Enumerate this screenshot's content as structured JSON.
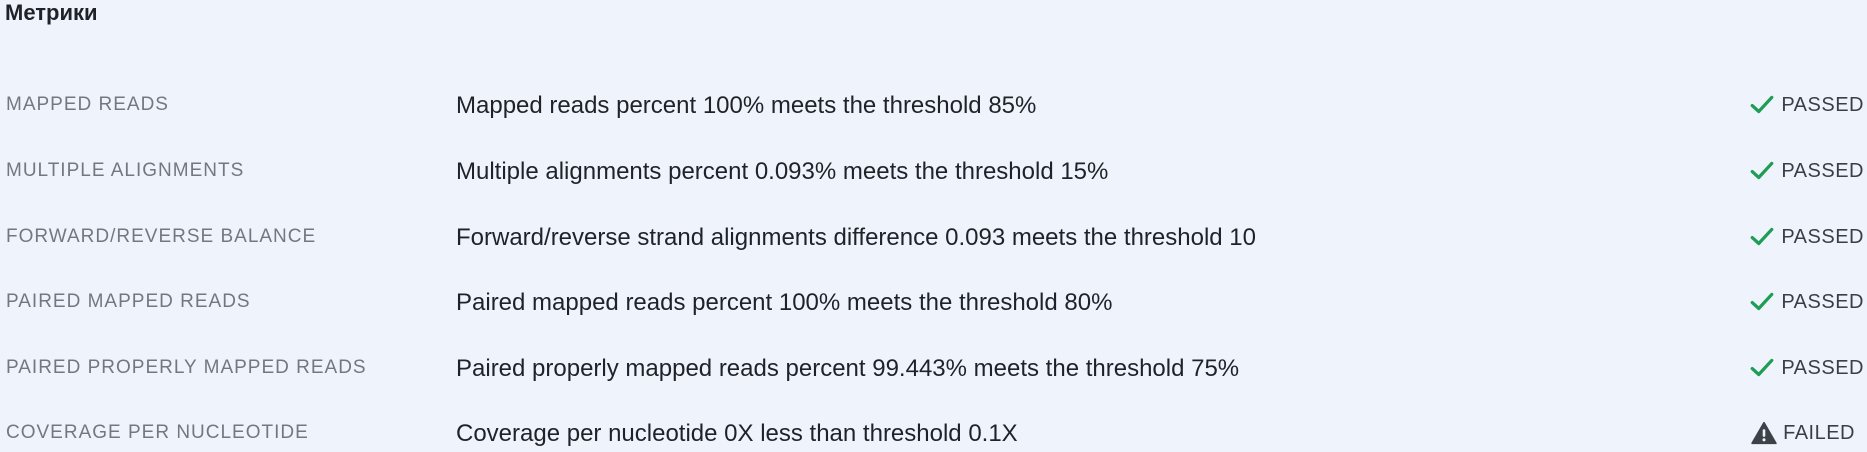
{
  "section": {
    "title": "Метрики"
  },
  "colors": {
    "passed": "#1f9d55",
    "failed": "#3d4148"
  },
  "metrics": [
    {
      "name": "MAPPED READS",
      "description": "Mapped reads percent 100% meets the threshold 85%",
      "status": "PASSED",
      "icon": "check-icon"
    },
    {
      "name": "MULTIPLE ALIGNMENTS",
      "description": "Multiple alignments percent 0.093% meets the threshold 15%",
      "status": "PASSED",
      "icon": "check-icon"
    },
    {
      "name": "FORWARD/REVERSE BALANCE",
      "description": "Forward/reverse strand alignments difference 0.093 meets the threshold 10",
      "status": "PASSED",
      "icon": "check-icon"
    },
    {
      "name": "PAIRED MAPPED READS",
      "description": "Paired mapped reads percent 100% meets the threshold 80%",
      "status": "PASSED",
      "icon": "check-icon"
    },
    {
      "name": "PAIRED PROPERLY MAPPED READS",
      "description": "Paired properly mapped reads percent 99.443% meets the threshold 75%",
      "status": "PASSED",
      "icon": "check-icon"
    },
    {
      "name": "COVERAGE PER NUCLEOTIDE",
      "description": "Coverage per nucleotide 0X less than threshold 0.1X",
      "status": "FAILED",
      "icon": "warning-icon"
    }
  ]
}
